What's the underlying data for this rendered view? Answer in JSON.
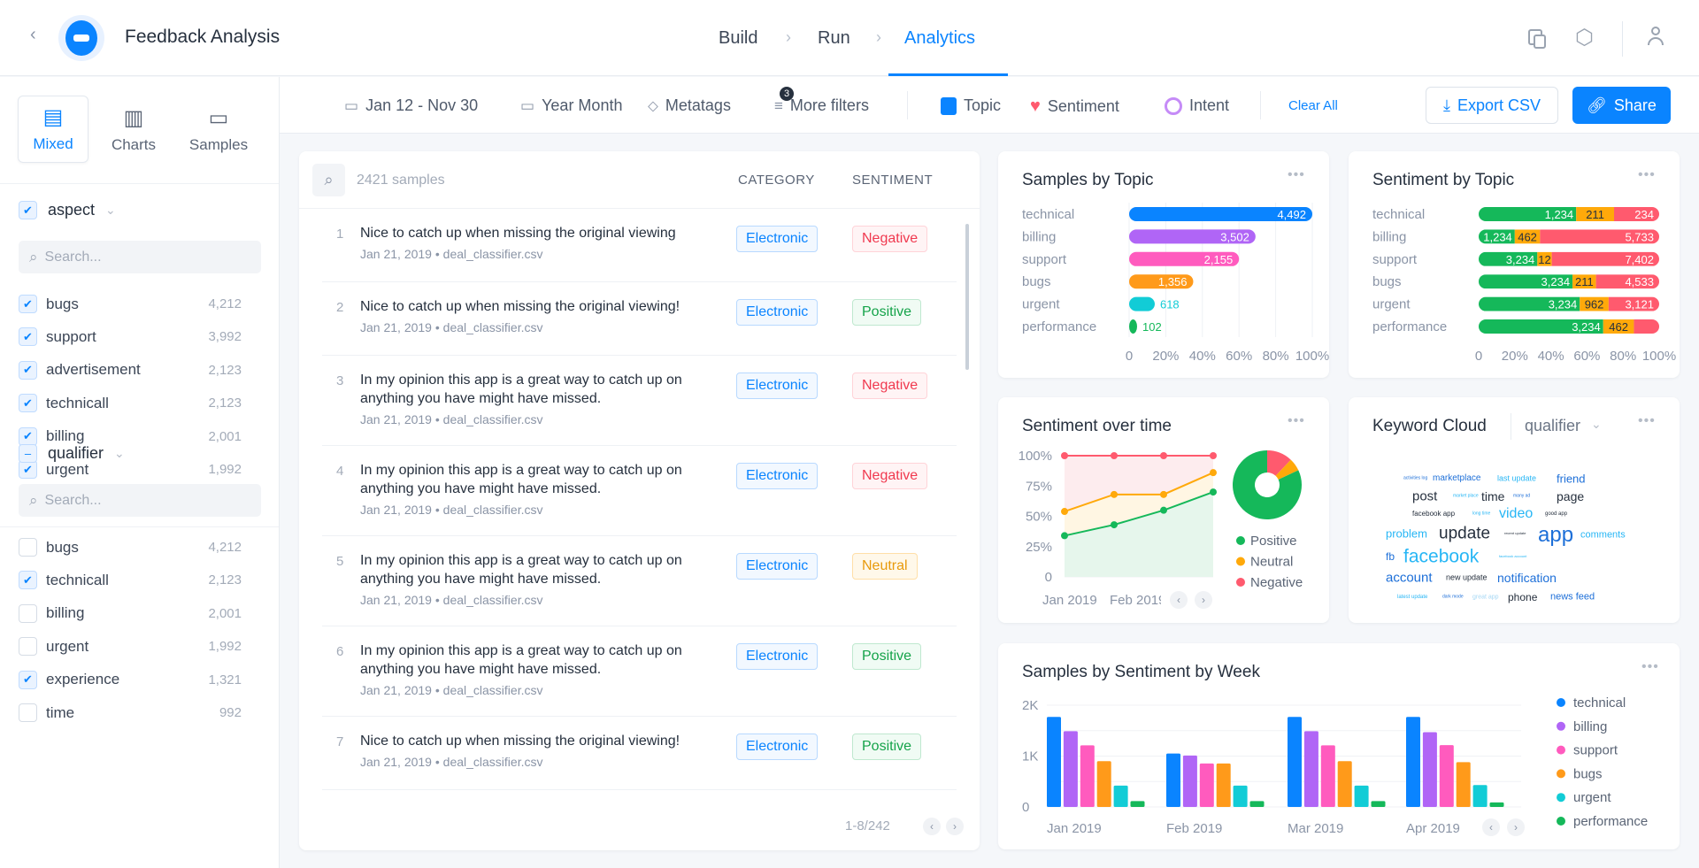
{
  "header": {
    "title": "Feedback Analysis",
    "steps": [
      "Build",
      "Run",
      "Analytics"
    ],
    "active_step": "Analytics"
  },
  "toolbar": {
    "date_range": "Jan 12 - Nov 30",
    "granularity": "Year Month",
    "metatags": "Metatags",
    "more_filters": "More filters",
    "more_filters_count": "3",
    "topic": "Topic",
    "sentiment": "Sentiment",
    "intent": "Intent",
    "clear_all": "Clear All",
    "export": "Export CSV",
    "share": "Share"
  },
  "view_modes": [
    {
      "label": "Mixed",
      "active": true
    },
    {
      "label": "Charts",
      "active": false
    },
    {
      "label": "Samples",
      "active": false
    }
  ],
  "filters": [
    {
      "name": "aspect",
      "state": "checked",
      "search_placeholder": "Search...",
      "items": [
        {
          "label": "bugs",
          "count": "4,212",
          "checked": true
        },
        {
          "label": "support",
          "count": "3,992",
          "checked": true
        },
        {
          "label": "advertisement",
          "count": "2,123",
          "checked": true
        },
        {
          "label": "technicall",
          "count": "2,123",
          "checked": true
        },
        {
          "label": "billing",
          "count": "2,001",
          "checked": true
        },
        {
          "label": "urgent",
          "count": "1,992",
          "checked": true
        }
      ]
    },
    {
      "name": "qualifier",
      "state": "indeterminate",
      "search_placeholder": "Search...",
      "items": [
        {
          "label": "bugs",
          "count": "4,212",
          "checked": false
        },
        {
          "label": "technicall",
          "count": "2,123",
          "checked": true
        },
        {
          "label": "billing",
          "count": "2,001",
          "checked": false
        },
        {
          "label": "urgent",
          "count": "1,992",
          "checked": false
        },
        {
          "label": "experience",
          "count": "1,321",
          "checked": true
        },
        {
          "label": "time",
          "count": "992",
          "checked": false
        }
      ]
    }
  ],
  "samples": {
    "count_label": "2421 samples",
    "columns": [
      "CATEGORY",
      "SENTIMENT"
    ],
    "pagination": "1-8/242",
    "rows": [
      {
        "n": "1",
        "text": "Nice to catch up when missing the original viewing",
        "date": "Jan 21, 2019",
        "file": "deal_classifier.csv",
        "category": "Electronic",
        "sentiment": "Negative"
      },
      {
        "n": "2",
        "text": "Nice to catch up when missing the original viewing!",
        "date": "Jan 21, 2019",
        "file": "deal_classifier.csv",
        "category": "Electronic",
        "sentiment": "Positive"
      },
      {
        "n": "3",
        "text": "In my opinion this app is a great way to catch up on anything you have might have missed.",
        "date": "Jan 21, 2019",
        "file": "deal_classifier.csv",
        "category": "Electronic",
        "sentiment": "Negative"
      },
      {
        "n": "4",
        "text": "In my opinion this app is a great way to catch up on anything you have might have missed.",
        "date": "Jan 21, 2019",
        "file": "deal_classifier.csv",
        "category": "Electronic",
        "sentiment": "Negative"
      },
      {
        "n": "5",
        "text": "In my opinion this app is a great way to catch up on anything you have might have missed.",
        "date": "Jan 21, 2019",
        "file": "deal_classifier.csv",
        "category": "Electronic",
        "sentiment": "Neutral"
      },
      {
        "n": "6",
        "text": "In my opinion this app is a great way to catch up on anything you have might have missed.",
        "date": "Jan 21, 2019",
        "file": "deal_classifier.csv",
        "category": "Electronic",
        "sentiment": "Positive"
      },
      {
        "n": "7",
        "text": "Nice to catch up when missing the original viewing!",
        "date": "Jan 21, 2019",
        "file": "deal_classifier.csv",
        "category": "Electronic",
        "sentiment": "Positive"
      }
    ]
  },
  "colors": {
    "accent": "#0A84FF",
    "technical": "#0A84FF",
    "billing": "#B065F6",
    "support": "#FF5BBE",
    "bugs": "#FF9A1A",
    "urgent": "#12CCD6",
    "performance": "#15B85A",
    "positive": "#15B85A",
    "neutral": "#FFA90A",
    "negative": "#FF5A6E"
  },
  "chart_data": [
    {
      "type": "bar",
      "title": "Samples by Topic",
      "orientation": "horizontal",
      "categories": [
        "technical",
        "billing",
        "support",
        "bugs",
        "urgent",
        "performance"
      ],
      "values": [
        4492,
        3502,
        2155,
        1356,
        618,
        102
      ],
      "value_labels": [
        "4,492",
        "3,502",
        "2,155",
        "1,356",
        "618",
        "102"
      ],
      "percent": [
        100,
        69,
        60,
        35,
        14,
        4
      ],
      "x_ticks": [
        "0",
        "20%",
        "40%",
        "60%",
        "80%",
        "100%"
      ],
      "xlim": [
        0,
        100
      ]
    },
    {
      "type": "bar",
      "title": "Sentiment by Topic",
      "orientation": "horizontal",
      "stacked": true,
      "categories": [
        "technical",
        "billing",
        "support",
        "bugs",
        "urgent",
        "performance"
      ],
      "series": [
        {
          "name": "Positive",
          "labels": [
            "1,234",
            "1,234",
            "3,234",
            "3,234",
            "3,234",
            "3,234"
          ],
          "share": [
            54,
            20,
            32.5,
            52,
            56,
            69
          ]
        },
        {
          "name": "Neutral",
          "labels": [
            "211",
            "462",
            "12",
            "211",
            "962",
            "462"
          ],
          "share": [
            21,
            14,
            8,
            13,
            16,
            17
          ]
        },
        {
          "name": "Negative",
          "labels": [
            "234",
            "5,733",
            "7,402",
            "4,533",
            "3,121",
            ""
          ],
          "share": [
            25,
            66,
            59.5,
            35,
            28,
            14
          ]
        }
      ],
      "x_ticks": [
        "0",
        "20%",
        "40%",
        "60%",
        "80%",
        "100%"
      ],
      "xlim": [
        0,
        100
      ]
    },
    {
      "type": "area",
      "title": "Sentiment over time",
      "stacked": true,
      "x_labels": [
        "Jan 2019",
        "Feb 2019"
      ],
      "y_ticks": [
        "100%",
        "75%",
        "50%",
        "25%",
        "0"
      ],
      "ylim": [
        0,
        100
      ],
      "series": [
        {
          "name": "Positive",
          "values": [
            34,
            43,
            55,
            70
          ]
        },
        {
          "name": "Neutral",
          "values": [
            54,
            68,
            68,
            86
          ]
        },
        {
          "name": "Negative",
          "values": [
            100,
            100,
            100,
            100
          ]
        }
      ],
      "donut": [
        {
          "name": "Positive",
          "value": 82
        },
        {
          "name": "Neutral",
          "value": 6
        },
        {
          "name": "Negative",
          "value": 12
        }
      ],
      "legend": [
        "Positive",
        "Neutral",
        "Negative"
      ]
    },
    {
      "type": "bar",
      "title": "Samples by Sentiment by Week",
      "categories": [
        "Jan 2019",
        "Feb 2019",
        "Mar 2019",
        "Apr 2019"
      ],
      "y_ticks": [
        "2K",
        "1K",
        "0"
      ],
      "ylim": [
        0,
        2000
      ],
      "series": [
        {
          "name": "technical",
          "values": [
            1770,
            1050,
            1770,
            1770
          ]
        },
        {
          "name": "billing",
          "values": [
            1490,
            1010,
            1490,
            1470
          ]
        },
        {
          "name": "support",
          "values": [
            1210,
            855,
            1210,
            1215
          ]
        },
        {
          "name": "bugs",
          "values": [
            900,
            855,
            900,
            880
          ]
        },
        {
          "name": "urgent",
          "values": [
            420,
            420,
            420,
            430
          ]
        },
        {
          "name": "performance",
          "values": [
            115,
            115,
            115,
            90
          ]
        }
      ],
      "legend": "right"
    }
  ],
  "keyword_cloud": {
    "title": "Keyword Cloud",
    "selector": "qualifier",
    "words": [
      {
        "text": "marketplace",
        "size": 10,
        "color": "#1D6FD8"
      },
      {
        "text": "last update",
        "size": 9,
        "color": "#27B6F5"
      },
      {
        "text": "activities log",
        "size": 5,
        "color": "#1D6FD8"
      },
      {
        "text": "friend",
        "size": 13,
        "color": "#1D6FD8"
      },
      {
        "text": "market place",
        "size": 5,
        "color": "#27B6F5"
      },
      {
        "text": "post",
        "size": 15,
        "color": "#26303E"
      },
      {
        "text": "time",
        "size": 14,
        "color": "#26303E"
      },
      {
        "text": "many ad",
        "size": 5,
        "color": "#1D6FD8"
      },
      {
        "text": "facebook app",
        "size": 8,
        "color": "#26303E"
      },
      {
        "text": "long time",
        "size": 5,
        "color": "#27B6F5"
      },
      {
        "text": "page",
        "size": 14,
        "color": "#26303E"
      },
      {
        "text": "video",
        "size": 16,
        "color": "#27B6F5"
      },
      {
        "text": "problem",
        "size": 13,
        "color": "#27B6F5"
      },
      {
        "text": "update",
        "size": 19,
        "color": "#26303E"
      },
      {
        "text": "recent update",
        "size": 4,
        "color": "#26303E"
      },
      {
        "text": "good app",
        "size": 6,
        "color": "#26303E"
      },
      {
        "text": "app",
        "size": 24,
        "color": "#1D6FD8"
      },
      {
        "text": "comments",
        "size": 11,
        "color": "#27B6F5"
      },
      {
        "text": "fb",
        "size": 12,
        "color": "#1D6FD8"
      },
      {
        "text": "facebook",
        "size": 21,
        "color": "#27B6F5"
      },
      {
        "text": "facebook account",
        "size": 4,
        "color": "#27B6F5"
      },
      {
        "text": "account",
        "size": 15,
        "color": "#1D6FD8"
      },
      {
        "text": "new update",
        "size": 9,
        "color": "#26303E"
      },
      {
        "text": "notification",
        "size": 14,
        "color": "#1D6FD8"
      },
      {
        "text": "latest update",
        "size": 6,
        "color": "#27B6F5"
      },
      {
        "text": "great app",
        "size": 7,
        "color": "#A7D8F5"
      },
      {
        "text": "phone",
        "size": 12,
        "color": "#26303E"
      },
      {
        "text": "dark mode",
        "size": 5,
        "color": "#1D6FD8"
      },
      {
        "text": "news feed",
        "size": 11,
        "color": "#1D6FD8"
      }
    ]
  }
}
